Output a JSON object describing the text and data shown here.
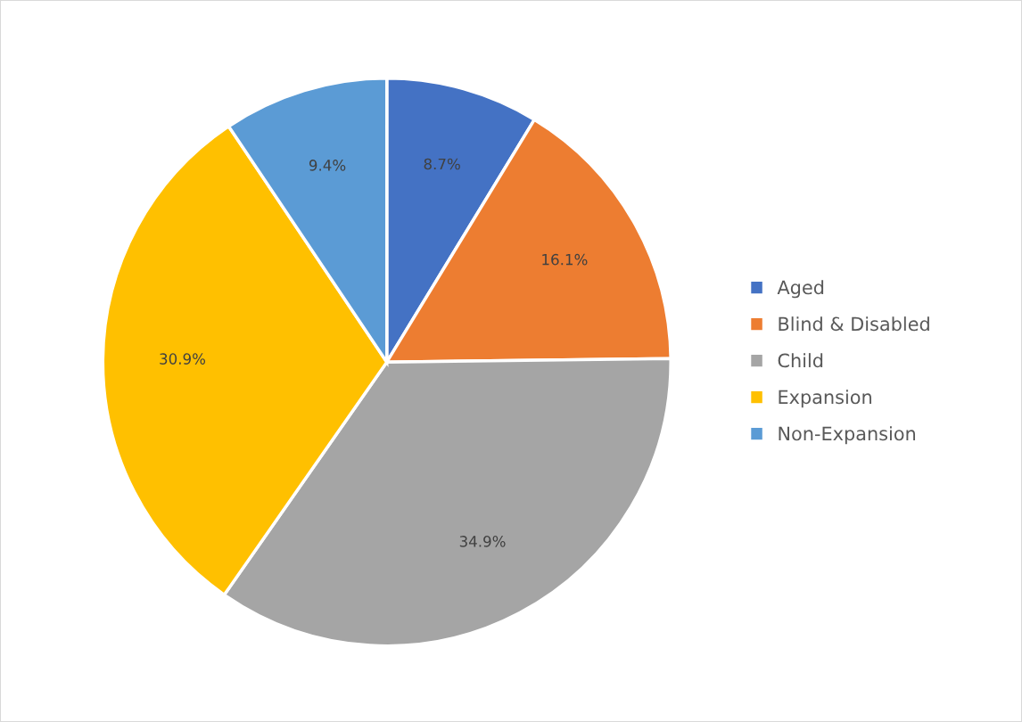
{
  "chart_data": {
    "type": "pie",
    "categories": [
      "Aged",
      "Blind & Disabled",
      "Child",
      "Expansion",
      "Non-Expansion"
    ],
    "values": [
      8.7,
      16.1,
      34.9,
      30.9,
      9.4
    ],
    "colors": [
      "#4472c4",
      "#ed7d31",
      "#a5a5a5",
      "#ffc000",
      "#5b9bd5"
    ],
    "value_labels": [
      "8.7%",
      "16.1%",
      "34.9%",
      "30.9%",
      "9.4%"
    ],
    "legend": "right"
  }
}
